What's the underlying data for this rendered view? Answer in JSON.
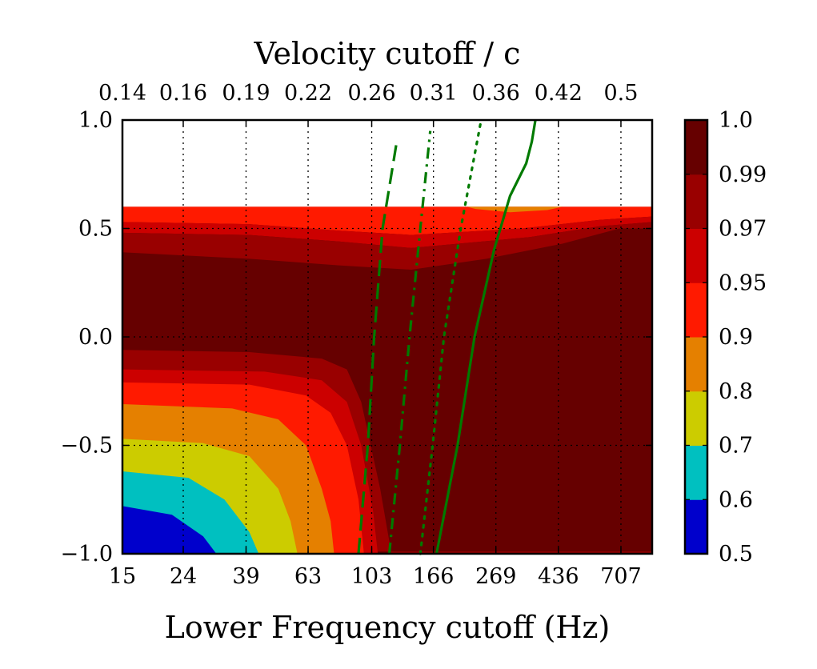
{
  "chart_data": {
    "type": "heatmap",
    "title": "",
    "xlabel": "Lower Frequency cutoff (Hz)",
    "x2label": "Velocity cutoff / c",
    "ylabel": "",
    "xscale": "log",
    "xlim": [
      15,
      900
    ],
    "ylim": [
      -1.0,
      1.0
    ],
    "x_ticks": [
      15,
      24,
      39,
      63,
      103,
      166,
      269,
      436,
      707
    ],
    "x_tick_labels": [
      "15",
      "24",
      "39",
      "63",
      "103",
      "166",
      "269",
      "436",
      "707"
    ],
    "x2_ticks": [
      15,
      24,
      39,
      63,
      103,
      166,
      269,
      436,
      707
    ],
    "x2_tick_labels": [
      "0.14",
      "0.16",
      "0.19",
      "0.22",
      "0.26",
      "0.31",
      "0.36",
      "0.42",
      "0.5"
    ],
    "y_ticks": [
      -1.0,
      -0.5,
      0.0,
      0.5,
      1.0
    ],
    "y_tick_labels": [
      "−1.0",
      "−0.5",
      "0.0",
      "0.5",
      "1.0"
    ],
    "grid": true,
    "data_extent": {
      "x": [
        15,
        900
      ],
      "y": [
        -1.0,
        0.6
      ]
    },
    "colorbar": {
      "levels": [
        0.5,
        0.6,
        0.7,
        0.8,
        0.9,
        0.95,
        0.97,
        0.99,
        1.0
      ],
      "labels": [
        "0.5",
        "0.6",
        "0.7",
        "0.8",
        "0.9",
        "0.95",
        "0.97",
        "0.99",
        "1.0"
      ],
      "colors": [
        "#0000cc",
        "#00c0c0",
        "#cccc00",
        "#e58000",
        "#ff1a00",
        "#cc0000",
        "#990000",
        "#660000"
      ]
    },
    "regions": [
      {
        "name": "top-band-red",
        "color": "#ff1a00",
        "points": [
          [
            15,
            0.6
          ],
          [
            900,
            0.6
          ],
          [
            900,
            0.555
          ],
          [
            600,
            0.54
          ],
          [
            330,
            0.5
          ],
          [
            140,
            0.47
          ],
          [
            80,
            0.49
          ],
          [
            40,
            0.52
          ],
          [
            15,
            0.53
          ]
        ]
      },
      {
        "name": "top-band-orange",
        "color": "#e58000",
        "points": [
          [
            215,
            0.6
          ],
          [
            450,
            0.6
          ],
          [
            400,
            0.585
          ],
          [
            300,
            0.575
          ],
          [
            230,
            0.59
          ]
        ]
      },
      {
        "name": "top-band-darkred",
        "color": "#cc0000",
        "points": [
          [
            15,
            0.53
          ],
          [
            40,
            0.52
          ],
          [
            80,
            0.49
          ],
          [
            140,
            0.47
          ],
          [
            330,
            0.5
          ],
          [
            600,
            0.54
          ],
          [
            900,
            0.555
          ],
          [
            900,
            0.53
          ],
          [
            600,
            0.51
          ],
          [
            350,
            0.46
          ],
          [
            140,
            0.41
          ],
          [
            80,
            0.44
          ],
          [
            40,
            0.47
          ],
          [
            15,
            0.48
          ]
        ]
      },
      {
        "name": "top-band-maroon",
        "color": "#990000",
        "points": [
          [
            15,
            0.48
          ],
          [
            40,
            0.47
          ],
          [
            80,
            0.44
          ],
          [
            140,
            0.41
          ],
          [
            350,
            0.46
          ],
          [
            600,
            0.51
          ],
          [
            900,
            0.53
          ],
          [
            900,
            0.5
          ],
          [
            700,
            0.5
          ],
          [
            450,
            0.43
          ],
          [
            250,
            0.36
          ],
          [
            140,
            0.31
          ],
          [
            80,
            0.33
          ],
          [
            40,
            0.36
          ],
          [
            15,
            0.39
          ]
        ]
      },
      {
        "name": "low-band-maroon",
        "color": "#990000",
        "points": [
          [
            15,
            -0.06
          ],
          [
            40,
            -0.07
          ],
          [
            70,
            -0.1
          ],
          [
            85,
            -0.15
          ],
          [
            95,
            -0.3
          ],
          [
            110,
            -0.7
          ],
          [
            120,
            -1.0
          ],
          [
            900,
            -1.0
          ],
          [
            900,
            -0.99
          ],
          [
            15,
            -0.99
          ]
        ]
      },
      {
        "name": "low-band-darkred",
        "color": "#cc0000",
        "points": [
          [
            15,
            -0.15
          ],
          [
            45,
            -0.16
          ],
          [
            70,
            -0.2
          ],
          [
            85,
            -0.3
          ],
          [
            95,
            -0.5
          ],
          [
            104,
            -0.8
          ],
          [
            108,
            -1.0
          ],
          [
            15,
            -1.0
          ]
        ]
      },
      {
        "name": "low-band-red",
        "color": "#ff1a00",
        "points": [
          [
            15,
            -0.21
          ],
          [
            40,
            -0.22
          ],
          [
            62,
            -0.27
          ],
          [
            75,
            -0.35
          ],
          [
            85,
            -0.5
          ],
          [
            93,
            -0.75
          ],
          [
            97,
            -1.0
          ],
          [
            15,
            -1.0
          ]
        ]
      },
      {
        "name": "low-band-orange",
        "color": "#e58000",
        "points": [
          [
            15,
            -0.31
          ],
          [
            35,
            -0.33
          ],
          [
            50,
            -0.38
          ],
          [
            62,
            -0.5
          ],
          [
            70,
            -0.7
          ],
          [
            75,
            -0.85
          ],
          [
            77,
            -1.0
          ],
          [
            15,
            -1.0
          ]
        ]
      },
      {
        "name": "low-band-yellow",
        "color": "#cccc00",
        "points": [
          [
            15,
            -0.47
          ],
          [
            28,
            -0.49
          ],
          [
            40,
            -0.55
          ],
          [
            50,
            -0.7
          ],
          [
            55,
            -0.85
          ],
          [
            58,
            -1.0
          ],
          [
            15,
            -1.0
          ]
        ]
      },
      {
        "name": "low-band-cyan",
        "color": "#00c0c0",
        "points": [
          [
            15,
            -0.62
          ],
          [
            25,
            -0.65
          ],
          [
            33,
            -0.75
          ],
          [
            40,
            -0.9
          ],
          [
            43,
            -1.0
          ],
          [
            15,
            -1.0
          ]
        ]
      },
      {
        "name": "low-band-blue",
        "color": "#0000cc",
        "points": [
          [
            15,
            -0.78
          ],
          [
            22,
            -0.82
          ],
          [
            28,
            -0.92
          ],
          [
            31,
            -1.0
          ],
          [
            15,
            -1.0
          ]
        ]
      }
    ],
    "series": [
      {
        "name": "green-dashed-line",
        "style": "dashed",
        "color": "#007a00",
        "points": [
          [
            93,
            -1.0
          ],
          [
            100,
            -0.5
          ],
          [
            105,
            0.0
          ],
          [
            112,
            0.5
          ],
          [
            125,
            0.9
          ]
        ]
      },
      {
        "name": "green-dashdot-line",
        "style": "dashdot",
        "color": "#007a00",
        "points": [
          [
            118,
            -1.0
          ],
          [
            128,
            -0.5
          ],
          [
            138,
            0.0
          ],
          [
            150,
            0.5
          ],
          [
            162,
            0.95
          ]
        ]
      },
      {
        "name": "green-dotted-line",
        "style": "dotted",
        "color": "#007a00",
        "points": [
          [
            150,
            -1.0
          ],
          [
            165,
            -0.5
          ],
          [
            180,
            0.0
          ],
          [
            205,
            0.5
          ],
          [
            240,
            1.0
          ]
        ]
      },
      {
        "name": "green-solid-line",
        "style": "solid",
        "color": "#007a00",
        "points": [
          [
            170,
            -1.0
          ],
          [
            200,
            -0.5
          ],
          [
            228,
            0.0
          ],
          [
            265,
            0.4
          ],
          [
            300,
            0.65
          ],
          [
            340,
            0.8
          ],
          [
            355,
            0.9
          ],
          [
            365,
            1.0
          ]
        ]
      }
    ]
  }
}
